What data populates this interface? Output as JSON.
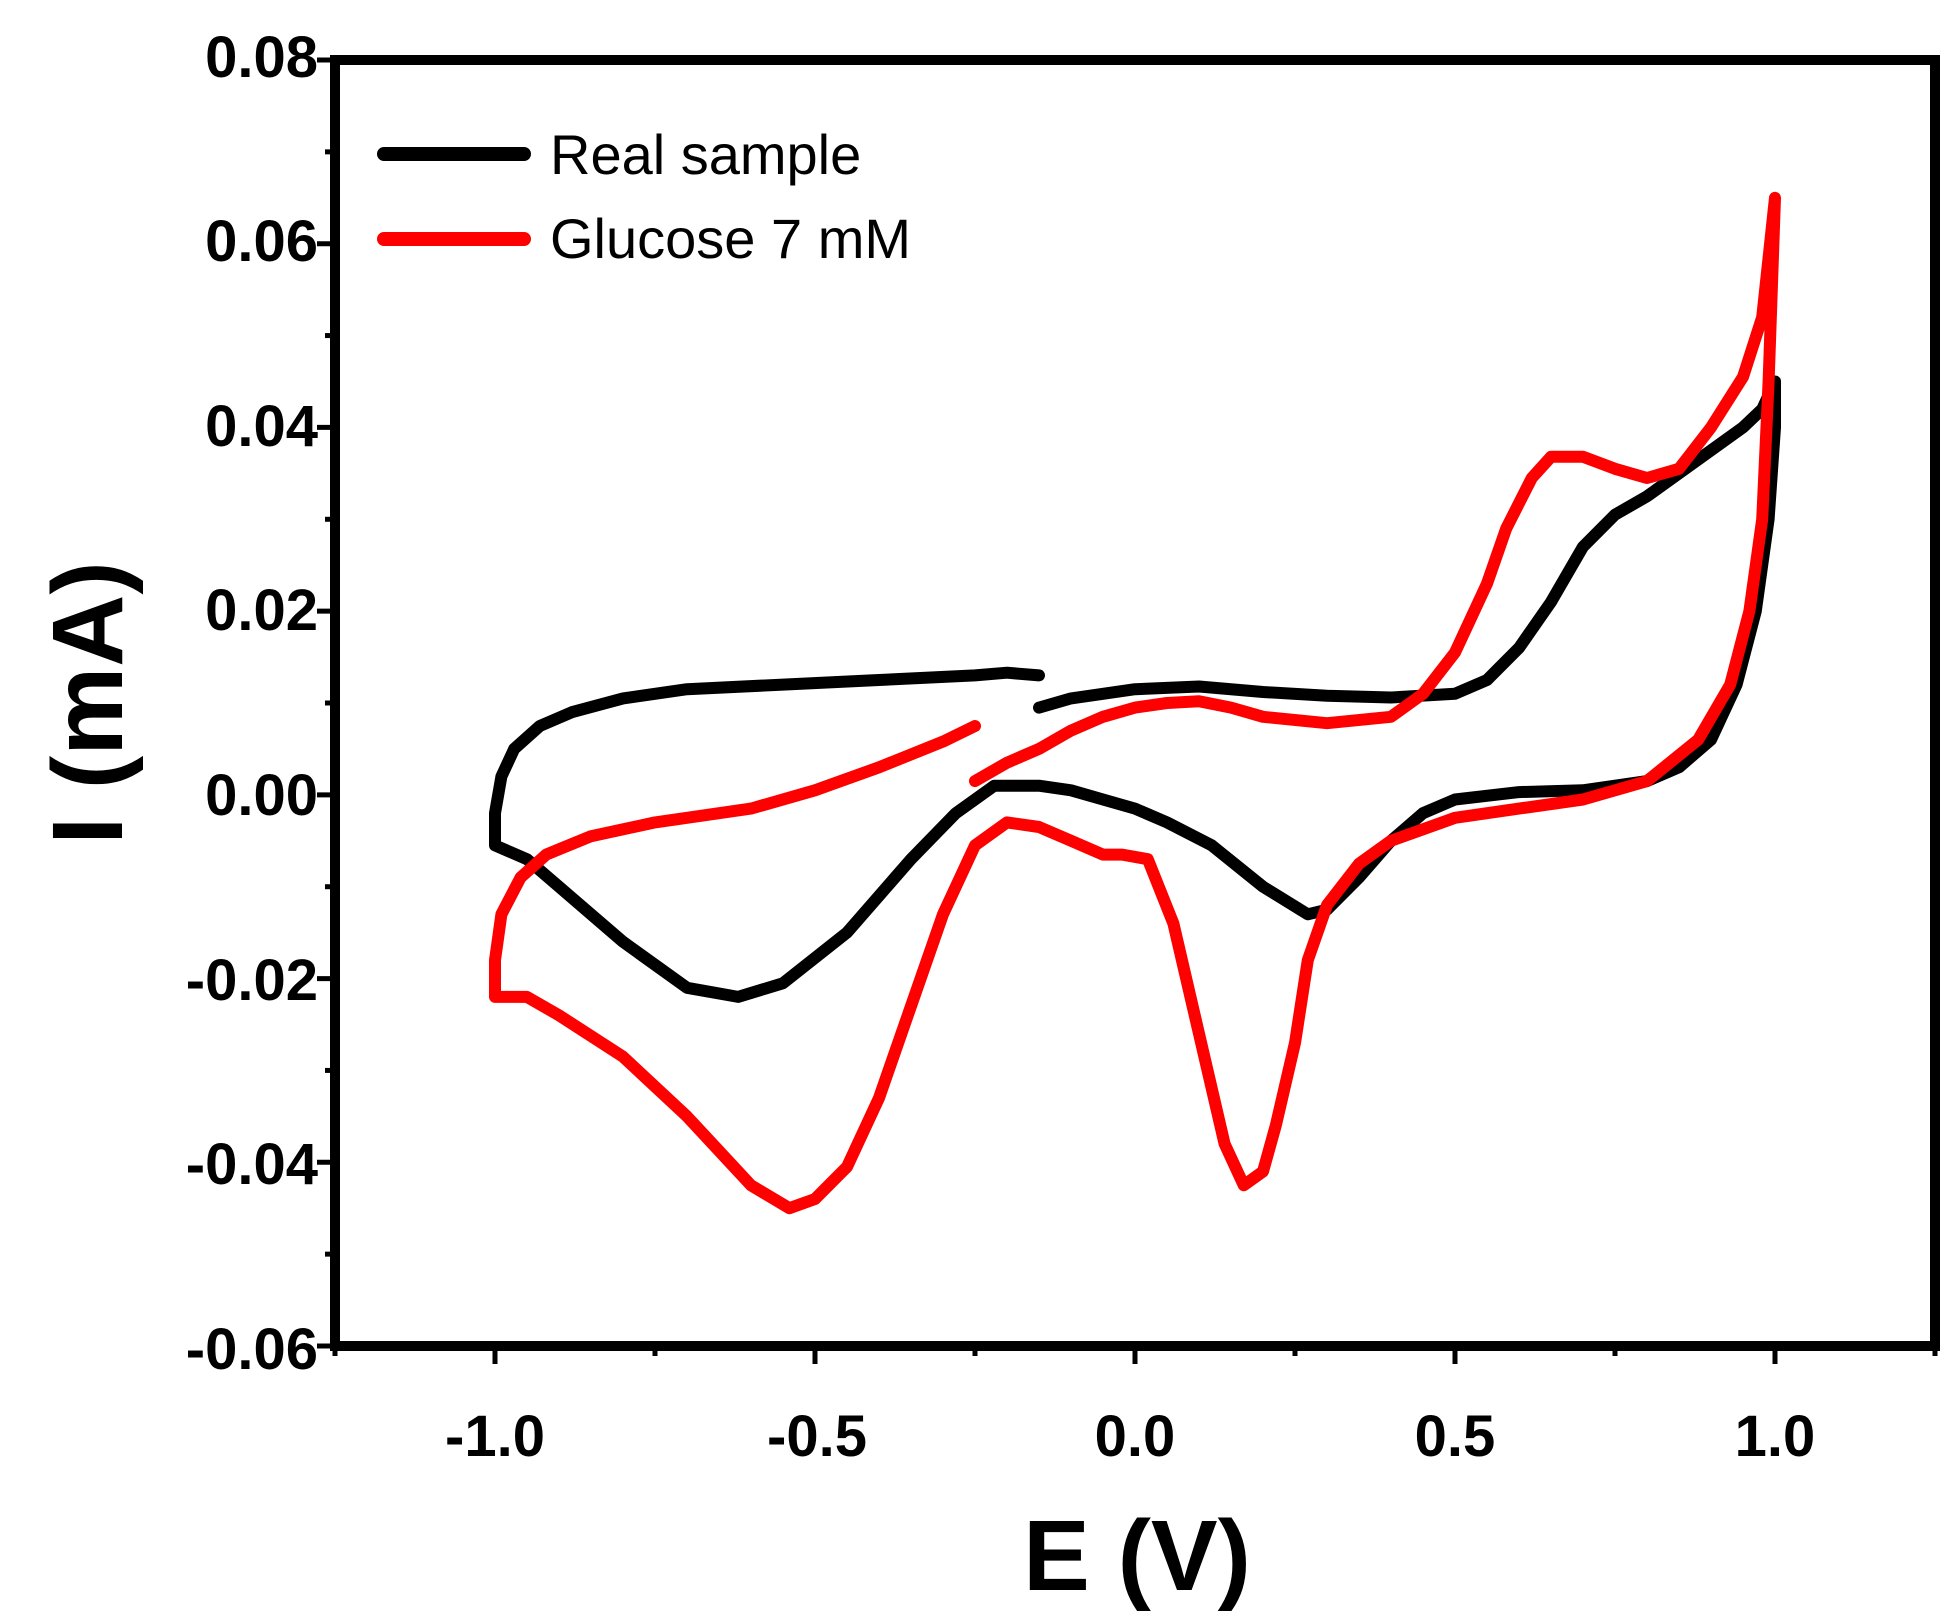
{
  "chart_data": {
    "type": "line",
    "title": "",
    "xlabel": "E (V)",
    "ylabel": "I (mA)",
    "xlim": [
      -1.25,
      1.25
    ],
    "ylim": [
      -0.06,
      0.08
    ],
    "xticks": [
      -1.0,
      -0.5,
      0.0,
      0.5,
      1.0
    ],
    "xtick_labels": [
      "-1.0",
      "-0.5",
      "0.0",
      "0.5",
      "1.0"
    ],
    "yticks": [
      -0.06,
      -0.04,
      -0.02,
      0.0,
      0.02,
      0.04,
      0.06,
      0.08
    ],
    "ytick_labels": [
      "-0.06",
      "-0.04",
      "-0.02",
      "0.00",
      "0.02",
      "0.04",
      "0.06",
      "0.08"
    ],
    "grid": false,
    "legend_position": "top-left",
    "series": [
      {
        "name": "Real sample",
        "color": "#000000",
        "points": [
          [
            -0.15,
            0.0095
          ],
          [
            -0.1,
            0.0105
          ],
          [
            0.0,
            0.0115
          ],
          [
            0.1,
            0.0118
          ],
          [
            0.2,
            0.0112
          ],
          [
            0.3,
            0.0108
          ],
          [
            0.4,
            0.0106
          ],
          [
            0.5,
            0.011
          ],
          [
            0.55,
            0.0125
          ],
          [
            0.6,
            0.016
          ],
          [
            0.65,
            0.021
          ],
          [
            0.7,
            0.027
          ],
          [
            0.75,
            0.0305
          ],
          [
            0.8,
            0.0325
          ],
          [
            0.85,
            0.035
          ],
          [
            0.9,
            0.0375
          ],
          [
            0.95,
            0.04
          ],
          [
            0.98,
            0.042
          ],
          [
            1.0,
            0.045
          ],
          [
            1.0,
            0.04
          ],
          [
            0.99,
            0.03
          ],
          [
            0.97,
            0.02
          ],
          [
            0.94,
            0.012
          ],
          [
            0.9,
            0.006
          ],
          [
            0.85,
            0.003
          ],
          [
            0.8,
            0.0015
          ],
          [
            0.7,
            0.0005
          ],
          [
            0.6,
            0.0003
          ],
          [
            0.5,
            -0.0005
          ],
          [
            0.45,
            -0.002
          ],
          [
            0.4,
            -0.005
          ],
          [
            0.35,
            -0.009
          ],
          [
            0.3,
            -0.0125
          ],
          [
            0.27,
            -0.013
          ],
          [
            0.2,
            -0.01
          ],
          [
            0.12,
            -0.0055
          ],
          [
            0.05,
            -0.003
          ],
          [
            0.0,
            -0.0015
          ],
          [
            -0.05,
            -0.0005
          ],
          [
            -0.1,
            0.0005
          ],
          [
            -0.15,
            0.001
          ],
          [
            -0.22,
            0.001
          ],
          [
            -0.28,
            -0.002
          ],
          [
            -0.35,
            -0.007
          ],
          [
            -0.45,
            -0.015
          ],
          [
            -0.55,
            -0.0205
          ],
          [
            -0.62,
            -0.022
          ],
          [
            -0.7,
            -0.021
          ],
          [
            -0.8,
            -0.016
          ],
          [
            -0.9,
            -0.01
          ],
          [
            -0.95,
            -0.007
          ],
          [
            -1.0,
            -0.0055
          ],
          [
            -1.0,
            -0.002
          ],
          [
            -0.99,
            0.002
          ],
          [
            -0.97,
            0.005
          ],
          [
            -0.93,
            0.0075
          ],
          [
            -0.88,
            0.009
          ],
          [
            -0.8,
            0.0105
          ],
          [
            -0.7,
            0.0115
          ],
          [
            -0.55,
            0.012
          ],
          [
            -0.4,
            0.0125
          ],
          [
            -0.25,
            0.013
          ],
          [
            -0.2,
            0.0133
          ],
          [
            -0.15,
            0.013
          ]
        ]
      },
      {
        "name": "Glucose 7 mM",
        "color": "#ff0000",
        "points": [
          [
            -0.25,
            0.0015
          ],
          [
            -0.2,
            0.0035
          ],
          [
            -0.15,
            0.005
          ],
          [
            -0.1,
            0.007
          ],
          [
            -0.05,
            0.0085
          ],
          [
            0.0,
            0.0095
          ],
          [
            0.05,
            0.01
          ],
          [
            0.1,
            0.0102
          ],
          [
            0.15,
            0.0095
          ],
          [
            0.2,
            0.0085
          ],
          [
            0.3,
            0.0078
          ],
          [
            0.4,
            0.0085
          ],
          [
            0.45,
            0.011
          ],
          [
            0.5,
            0.0155
          ],
          [
            0.55,
            0.023
          ],
          [
            0.58,
            0.029
          ],
          [
            0.62,
            0.0345
          ],
          [
            0.65,
            0.0368
          ],
          [
            0.7,
            0.0368
          ],
          [
            0.75,
            0.0355
          ],
          [
            0.8,
            0.0345
          ],
          [
            0.85,
            0.0355
          ],
          [
            0.9,
            0.04
          ],
          [
            0.95,
            0.0455
          ],
          [
            0.98,
            0.052
          ],
          [
            1.0,
            0.065
          ],
          [
            0.99,
            0.045
          ],
          [
            0.98,
            0.03
          ],
          [
            0.96,
            0.02
          ],
          [
            0.93,
            0.012
          ],
          [
            0.88,
            0.006
          ],
          [
            0.8,
            0.0015
          ],
          [
            0.7,
            -0.0005
          ],
          [
            0.6,
            -0.0015
          ],
          [
            0.5,
            -0.0025
          ],
          [
            0.4,
            -0.005
          ],
          [
            0.35,
            -0.0075
          ],
          [
            0.3,
            -0.012
          ],
          [
            0.27,
            -0.018
          ],
          [
            0.25,
            -0.027
          ],
          [
            0.22,
            -0.036
          ],
          [
            0.2,
            -0.041
          ],
          [
            0.17,
            -0.0425
          ],
          [
            0.14,
            -0.038
          ],
          [
            0.1,
            -0.026
          ],
          [
            0.06,
            -0.014
          ],
          [
            0.02,
            -0.007
          ],
          [
            -0.02,
            -0.0065
          ],
          [
            -0.05,
            -0.0065
          ],
          [
            -0.1,
            -0.005
          ],
          [
            -0.15,
            -0.0035
          ],
          [
            -0.2,
            -0.003
          ],
          [
            -0.25,
            -0.0055
          ],
          [
            -0.3,
            -0.013
          ],
          [
            -0.35,
            -0.023
          ],
          [
            -0.4,
            -0.033
          ],
          [
            -0.45,
            -0.0405
          ],
          [
            -0.5,
            -0.044
          ],
          [
            -0.54,
            -0.045
          ],
          [
            -0.6,
            -0.0425
          ],
          [
            -0.7,
            -0.035
          ],
          [
            -0.8,
            -0.0285
          ],
          [
            -0.9,
            -0.024
          ],
          [
            -0.95,
            -0.022
          ],
          [
            -1.0,
            -0.022
          ],
          [
            -1.0,
            -0.018
          ],
          [
            -0.99,
            -0.013
          ],
          [
            -0.96,
            -0.009
          ],
          [
            -0.92,
            -0.0065
          ],
          [
            -0.85,
            -0.0045
          ],
          [
            -0.75,
            -0.003
          ],
          [
            -0.6,
            -0.0015
          ],
          [
            -0.5,
            0.0005
          ],
          [
            -0.4,
            0.003
          ],
          [
            -0.3,
            0.0058
          ],
          [
            -0.25,
            0.0075
          ]
        ]
      }
    ]
  }
}
